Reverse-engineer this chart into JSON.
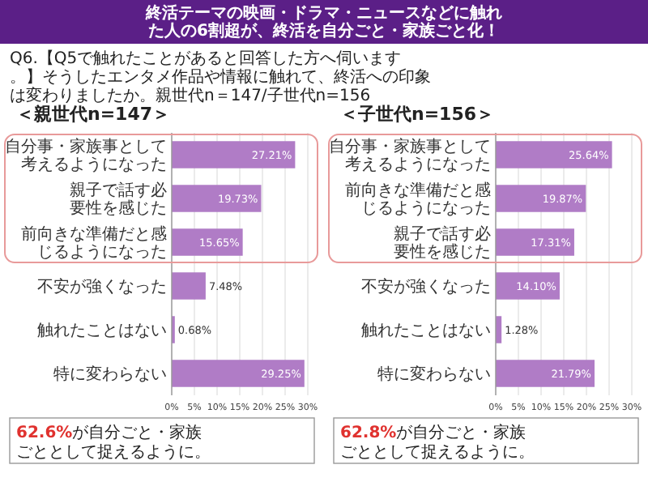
{
  "chart_data": [
    {
      "type": "bar",
      "orientation": "horizontal",
      "title": "＜親世代n=147＞",
      "categories": [
        "自分事・家族事として考えるようになった",
        "親子で話す必要性を感じた",
        "前向きな準備だと感じるようになった",
        "不安が強くなった",
        "触れたことはない",
        "特に変わらない"
      ],
      "values": [
        27.21,
        19.73,
        15.65,
        7.48,
        0.68,
        29.25
      ],
      "value_labels": [
        "27.21%",
        "19.73%",
        "15.65%",
        "7.48%",
        "0.68%",
        "29.25%"
      ],
      "color": "#b07cc6",
      "xlim": [
        0,
        30
      ],
      "xticks": [
        {
          "value": 0,
          "label": "0%"
        },
        {
          "value": 5,
          "label": "5%"
        },
        {
          "value": 10,
          "label": "10%"
        },
        {
          "value": 15,
          "label": "15%"
        },
        {
          "value": 20,
          "label": "20%"
        },
        {
          "value": 25,
          "label": "25%"
        },
        {
          "value": 30,
          "label": "30%"
        }
      ],
      "grid": "x",
      "annotations": [
        "終活テーマの映画・ドラマ・ニュースなどに触れた人の6割超が、終活を自分ごと・家族ごと化！",
        "Q6.【Q5で触れたことがあると回答した方へ伺います。】そうしたエンタメ作品や情報に触れて、終活への印象は変わりましたか。親世代n＝147/子世代n=156",
        "62.6%が自分ごと・家族ごととして捉えるように。"
      ]
    },
    {
      "type": "bar",
      "orientation": "horizontal",
      "title": "＜子世代n=156＞",
      "categories": [
        "自分事・家族事として考えるようになった",
        "前向きな準備だと感じるようになった",
        "親子で話す必要性を感じた",
        "不安が強くなった",
        "触れたことはない",
        "特に変わらない"
      ],
      "values": [
        25.64,
        19.87,
        17.31,
        14.1,
        1.28,
        21.79
      ],
      "value_labels": [
        "25.64%",
        "19.87%",
        "17.31%",
        "14.10%",
        "1.28%",
        "21.79%"
      ],
      "color": "#b07cc6",
      "xlim": [
        0,
        30
      ],
      "xticks": [
        {
          "value": 0,
          "label": "0%"
        },
        {
          "value": 5,
          "label": "5%"
        },
        {
          "value": 10,
          "label": "10%"
        },
        {
          "value": 15,
          "label": "15%"
        },
        {
          "value": 20,
          "label": "20%"
        },
        {
          "value": 25,
          "label": "25%"
        },
        {
          "value": 30,
          "label": "30%"
        }
      ],
      "grid": "x",
      "annotations": [
        "62.8%が自分ごと・家族ごととして捉えるように。"
      ]
    }
  ]
}
